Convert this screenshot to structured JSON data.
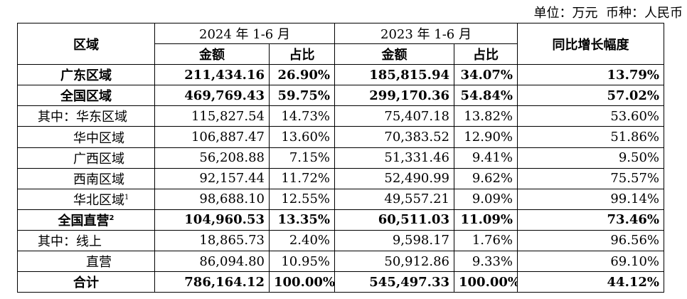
{
  "unit_note": "单位：万元  币种：人民币",
  "header": {
    "region": "区域",
    "period_2024": "2024 年 1-6 月",
    "period_2023": "2023 年 1-6 月",
    "amount_2024": "金额",
    "share_2024": "占比",
    "amount_2023": "金额",
    "share_2023": "占比",
    "yoy": "同比增长幅度"
  },
  "rows": [
    {
      "label": "广东区域",
      "indent": 0,
      "bold": true,
      "sup": "",
      "amt24": "211,434.16",
      "pct24": "26.90%",
      "amt23": "185,815.94",
      "pct23": "34.07%",
      "yoy": "13.79%"
    },
    {
      "label": "全国区域",
      "indent": 0,
      "bold": true,
      "sup": "",
      "amt24": "469,769.43",
      "pct24": "59.75%",
      "amt23": "299,170.36",
      "pct23": "54.84%",
      "yoy": "57.02%"
    },
    {
      "label": "其中：华东区域",
      "indent": 1,
      "bold": false,
      "sup": "",
      "amt24": "115,827.54",
      "pct24": "14.73%",
      "amt23": "75,407.18",
      "pct23": "13.82%",
      "yoy": "53.60%"
    },
    {
      "label": "华中区域",
      "indent": 2,
      "bold": false,
      "sup": "",
      "amt24": "106,887.47",
      "pct24": "13.60%",
      "amt23": "70,383.52",
      "pct23": "12.90%",
      "yoy": "51.86%"
    },
    {
      "label": "广西区域",
      "indent": 2,
      "bold": false,
      "sup": "",
      "amt24": "56,208.88",
      "pct24": "7.15%",
      "amt23": "51,331.46",
      "pct23": "9.41%",
      "yoy": "9.50%"
    },
    {
      "label": "西南区域",
      "indent": 2,
      "bold": false,
      "sup": "",
      "amt24": "92,157.44",
      "pct24": "11.72%",
      "amt23": "52,490.99",
      "pct23": "9.62%",
      "yoy": "75.57%"
    },
    {
      "label": "华北区域",
      "indent": 2,
      "bold": false,
      "sup": "1",
      "amt24": "98,688.10",
      "pct24": "12.55%",
      "amt23": "49,557.21",
      "pct23": "9.09%",
      "yoy": "99.14%"
    },
    {
      "label": "全国直营",
      "indent": 0,
      "bold": true,
      "sup": "2",
      "amt24": "104,960.53",
      "pct24": "13.35%",
      "amt23": "60,511.03",
      "pct23": "11.09%",
      "yoy": "73.46%"
    },
    {
      "label": "其中：线上",
      "indent": 1,
      "bold": false,
      "sup": "",
      "amt24": "18,865.73",
      "pct24": "2.40%",
      "amt23": "9,598.17",
      "pct23": "1.76%",
      "yoy": "96.56%"
    },
    {
      "label": "直营",
      "indent": 3,
      "bold": false,
      "sup": "",
      "amt24": "86,094.80",
      "pct24": "10.95%",
      "amt23": "50,912.86",
      "pct23": "9.33%",
      "yoy": "69.10%"
    },
    {
      "label": "合计",
      "indent": 0,
      "bold": true,
      "sup": "",
      "amt24": "786,164.12",
      "pct24": "100.00%",
      "amt23": "545,497.33",
      "pct23": "100.00%",
      "yoy": "44.12%"
    }
  ]
}
